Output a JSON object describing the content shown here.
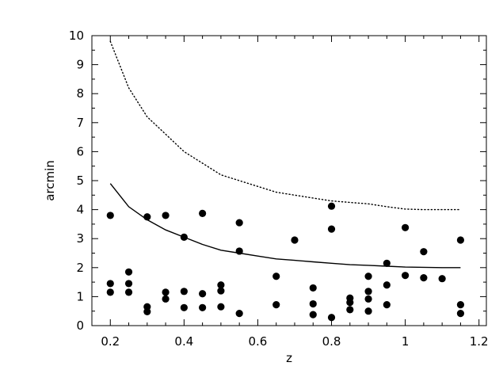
{
  "chart_data": {
    "type": "scatter",
    "title": "",
    "xlabel": "z",
    "ylabel": "arcmin",
    "xlim": [
      0.15,
      1.22
    ],
    "ylim": [
      0,
      10
    ],
    "x_ticks": [
      0.2,
      0.4,
      0.6,
      0.8,
      1,
      1.2
    ],
    "x_tick_labels": [
      "0.2",
      "0.4",
      "0.6",
      "0.8",
      "1",
      "1.2"
    ],
    "y_ticks": [
      0,
      1,
      2,
      3,
      4,
      5,
      6,
      7,
      8,
      9,
      10
    ],
    "y_tick_labels": [
      "0",
      "1",
      "2",
      "3",
      "4",
      "5",
      "6",
      "7",
      "8",
      "9",
      "10"
    ],
    "grid": false,
    "legend": "none",
    "series": [
      {
        "style": "filled-circle-markers",
        "points": [
          [
            0.2,
            3.8
          ],
          [
            0.2,
            1.45
          ],
          [
            0.2,
            1.15
          ],
          [
            0.25,
            1.85
          ],
          [
            0.25,
            1.45
          ],
          [
            0.25,
            1.15
          ],
          [
            0.3,
            3.75
          ],
          [
            0.3,
            0.65
          ],
          [
            0.3,
            0.48
          ],
          [
            0.35,
            3.8
          ],
          [
            0.35,
            1.15
          ],
          [
            0.35,
            0.92
          ],
          [
            0.4,
            3.05
          ],
          [
            0.4,
            1.18
          ],
          [
            0.4,
            0.62
          ],
          [
            0.45,
            3.87
          ],
          [
            0.45,
            1.1
          ],
          [
            0.45,
            0.62
          ],
          [
            0.5,
            1.4
          ],
          [
            0.5,
            1.2
          ],
          [
            0.5,
            0.65
          ],
          [
            0.55,
            3.55
          ],
          [
            0.55,
            2.57
          ],
          [
            0.55,
            0.42
          ],
          [
            0.65,
            1.7
          ],
          [
            0.65,
            0.72
          ],
          [
            0.7,
            2.95
          ],
          [
            0.75,
            1.3
          ],
          [
            0.75,
            0.75
          ],
          [
            0.75,
            0.38
          ],
          [
            0.8,
            4.12
          ],
          [
            0.8,
            3.33
          ],
          [
            0.8,
            0.28
          ],
          [
            0.85,
            0.95
          ],
          [
            0.85,
            0.8
          ],
          [
            0.85,
            0.55
          ],
          [
            0.9,
            1.7
          ],
          [
            0.9,
            1.18
          ],
          [
            0.9,
            0.92
          ],
          [
            0.9,
            0.5
          ],
          [
            0.95,
            2.15
          ],
          [
            0.95,
            1.4
          ],
          [
            0.95,
            0.72
          ],
          [
            1.0,
            3.38
          ],
          [
            1.0,
            1.73
          ],
          [
            1.05,
            2.55
          ],
          [
            1.05,
            1.65
          ],
          [
            1.1,
            1.62
          ],
          [
            1.15,
            2.95
          ],
          [
            1.15,
            0.72
          ],
          [
            1.15,
            0.42
          ]
        ]
      },
      {
        "style": "solid-line",
        "points": [
          [
            0.2,
            4.9
          ],
          [
            0.25,
            4.1
          ],
          [
            0.3,
            3.65
          ],
          [
            0.35,
            3.3
          ],
          [
            0.4,
            3.05
          ],
          [
            0.45,
            2.8
          ],
          [
            0.5,
            2.6
          ],
          [
            0.55,
            2.5
          ],
          [
            0.6,
            2.4
          ],
          [
            0.65,
            2.3
          ],
          [
            0.7,
            2.25
          ],
          [
            0.75,
            2.2
          ],
          [
            0.8,
            2.15
          ],
          [
            0.85,
            2.1
          ],
          [
            0.9,
            2.08
          ],
          [
            0.95,
            2.05
          ],
          [
            1.0,
            2.02
          ],
          [
            1.05,
            2.01
          ],
          [
            1.1,
            2.0
          ],
          [
            1.15,
            2.0
          ]
        ]
      },
      {
        "style": "dotted-line",
        "points": [
          [
            0.2,
            9.8
          ],
          [
            0.25,
            8.2
          ],
          [
            0.3,
            7.2
          ],
          [
            0.35,
            6.6
          ],
          [
            0.4,
            6.0
          ],
          [
            0.45,
            5.6
          ],
          [
            0.5,
            5.2
          ],
          [
            0.55,
            5.0
          ],
          [
            0.6,
            4.8
          ],
          [
            0.65,
            4.6
          ],
          [
            0.7,
            4.5
          ],
          [
            0.75,
            4.4
          ],
          [
            0.8,
            4.3
          ],
          [
            0.85,
            4.25
          ],
          [
            0.9,
            4.2
          ],
          [
            0.95,
            4.1
          ],
          [
            1.0,
            4.02
          ],
          [
            1.05,
            4.0
          ],
          [
            1.1,
            4.0
          ],
          [
            1.15,
            4.0
          ]
        ]
      }
    ]
  }
}
